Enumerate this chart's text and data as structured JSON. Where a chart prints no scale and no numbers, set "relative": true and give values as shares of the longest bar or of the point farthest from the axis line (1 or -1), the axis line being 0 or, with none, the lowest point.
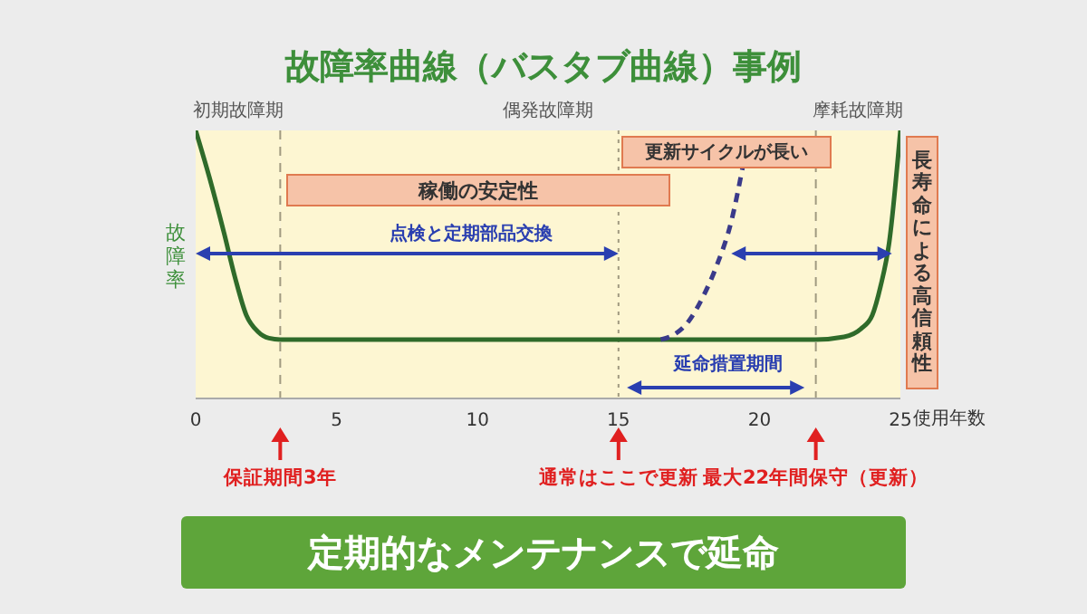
{
  "chart_data": {
    "type": "line",
    "title": "故障率曲線（バスタブ曲線）事例",
    "xlabel": "使用年数",
    "ylabel": "故障率",
    "relative": true,
    "xlim": [
      0,
      25
    ],
    "xticks": [
      0,
      5,
      10,
      15,
      20,
      25
    ],
    "marker": "none",
    "series": [
      {
        "color": "#2f6b2a",
        "line_style": "solid",
        "x": [
          0,
          0.5,
          1,
          1.4,
          1.8,
          2.2,
          2.6,
          3,
          10,
          15,
          20,
          22,
          23,
          23.6,
          24,
          24.3,
          24.6,
          25
        ],
        "values": [
          1,
          0.82,
          0.62,
          0.45,
          0.31,
          0.25,
          0.225,
          0.22,
          0.22,
          0.22,
          0.22,
          0.22,
          0.23,
          0.26,
          0.31,
          0.42,
          0.58,
          1
        ]
      },
      {
        "color": "#3a3a8a",
        "line_style": "dashed",
        "x": [
          16.5,
          17,
          17.5,
          18,
          18.5,
          19,
          19.4
        ],
        "values": [
          0.22,
          0.24,
          0.29,
          0.38,
          0.5,
          0.66,
          0.86
        ]
      }
    ],
    "bands": [
      {
        "axis": "x",
        "from": 0,
        "to": 3,
        "label": "初期故障期",
        "color": "#fdf6d2"
      },
      {
        "axis": "x",
        "from": 3,
        "to": 22,
        "label": "偶発故障期",
        "color": "#fdf6d2"
      },
      {
        "axis": "x",
        "from": 22,
        "to": 25,
        "label": "摩耗故障期",
        "color": "#fdf6d2"
      }
    ],
    "ref_lines": [
      {
        "axis": "x",
        "value": 3,
        "color": "#a09a80",
        "line_style": "dashed"
      },
      {
        "axis": "x",
        "value": 15,
        "color": "#a09a80",
        "line_style": "dotted"
      },
      {
        "axis": "x",
        "value": 22,
        "color": "#a09a80",
        "line_style": "dashed"
      }
    ],
    "annotations": [
      "稼働の安定性",
      "更新サイクルが長い",
      "長寿命による高信頼性",
      "点検と定期部品交換",
      "延命措置期間",
      "定期的なメンテナンスで延命",
      "保証期間3年",
      "通常はここで更新",
      "最大22年間保守（更新）"
    ]
  }
}
